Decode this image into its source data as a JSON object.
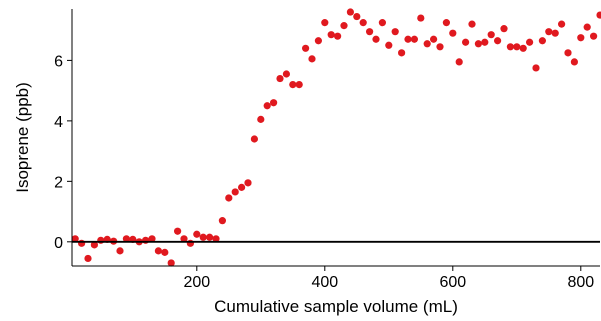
{
  "chart_data": {
    "type": "scatter",
    "title": "",
    "xlabel": "Cumulative sample volume (mL)",
    "ylabel": "Isoprene (ppb)",
    "xlim": [
      5,
      830
    ],
    "ylim": [
      -0.8,
      7.7
    ],
    "x_ticks": [
      200,
      400,
      600,
      800
    ],
    "x_tick_labels": [
      "200",
      "400",
      "600",
      "800"
    ],
    "y_ticks": [
      0,
      2,
      4,
      6
    ],
    "y_tick_labels": [
      "0",
      "2",
      "4",
      "6"
    ],
    "reference_line": {
      "y": 0,
      "color": "#000000"
    },
    "grid": false,
    "legend": "none",
    "marker_color": "#e0191f",
    "series": [
      {
        "x": [
          10,
          20,
          30,
          40,
          50,
          60,
          70,
          80,
          90,
          100,
          110,
          120,
          130,
          140,
          150,
          160,
          170,
          180,
          190,
          200,
          210,
          220,
          230,
          240,
          250,
          260,
          270,
          280,
          290,
          300,
          310,
          320,
          330,
          340,
          350,
          360,
          370,
          380,
          390,
          400,
          410,
          420,
          430,
          440,
          450,
          460,
          470,
          480,
          490,
          500,
          510,
          520,
          530,
          540,
          550,
          560,
          570,
          580,
          590,
          600,
          610,
          620,
          630,
          640,
          650,
          660,
          670,
          680,
          690,
          700,
          710,
          720,
          730,
          740,
          750,
          760,
          770,
          780,
          790,
          800,
          810,
          820,
          830
        ],
        "y": [
          0.1,
          -0.05,
          -0.55,
          -0.1,
          0.05,
          0.08,
          0.02,
          -0.3,
          0.1,
          0.08,
          0.0,
          0.05,
          0.1,
          -0.3,
          -0.35,
          -0.7,
          0.35,
          0.1,
          -0.05,
          0.25,
          0.15,
          0.15,
          0.1,
          0.7,
          1.45,
          1.65,
          1.8,
          1.95,
          3.4,
          4.05,
          4.5,
          4.6,
          5.4,
          5.55,
          5.2,
          5.2,
          6.4,
          6.05,
          6.65,
          7.25,
          6.85,
          6.8,
          7.15,
          7.6,
          7.45,
          7.25,
          6.95,
          6.7,
          7.25,
          6.5,
          6.95,
          6.25,
          6.7,
          6.7,
          7.4,
          6.55,
          6.7,
          6.45,
          7.25,
          6.9,
          5.95,
          6.6,
          7.2,
          6.55,
          6.6,
          6.85,
          6.65,
          7.05,
          6.45,
          6.45,
          6.4,
          6.6,
          5.75,
          6.65,
          6.95,
          6.9,
          7.2,
          6.25,
          5.95,
          6.75,
          7.1,
          6.8,
          7.5
        ]
      }
    ]
  }
}
